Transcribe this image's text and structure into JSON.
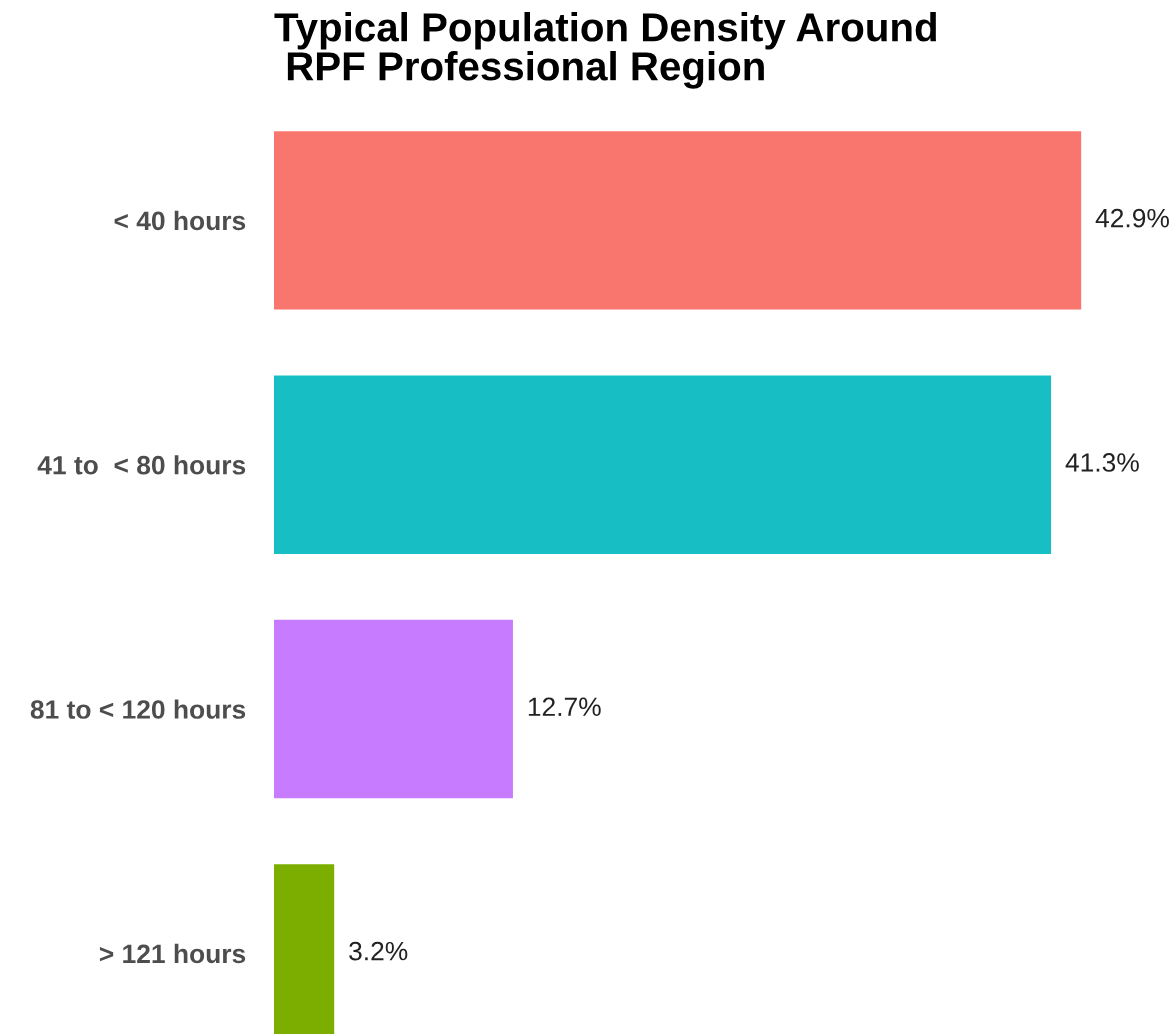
{
  "chart_data": {
    "type": "bar",
    "orientation": "horizontal",
    "title": "Typical Population Density Around\n RPF Professional Region",
    "categories": [
      "< 40 hours",
      "41 to  < 80 hours",
      "81 to < 120 hours",
      "> 121 hours"
    ],
    "values": [
      42.9,
      41.3,
      12.7,
      3.2
    ],
    "colors": [
      "#f8766d",
      "#17bfc4",
      "#c77cff",
      "#7cae00"
    ],
    "value_labels": [
      "42.9%",
      "41.3%",
      "12.7%",
      "3.2%"
    ],
    "grid": false,
    "legend": false
  }
}
